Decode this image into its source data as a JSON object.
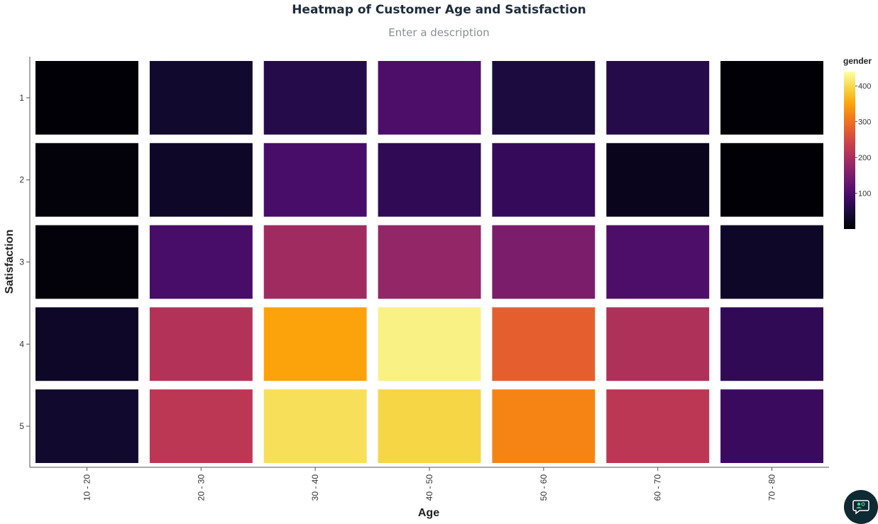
{
  "chart_data": {
    "type": "heatmap",
    "title": "Heatmap of Customer Age and Satisfaction",
    "subtitle": "Enter a description",
    "xlabel": "Age",
    "ylabel": "Satisfaction",
    "x_categories": [
      "10 - 20",
      "20 - 30",
      "30 - 40",
      "40 - 50",
      "50 - 60",
      "60 - 70",
      "70 - 80"
    ],
    "y_categories": [
      "1",
      "2",
      "3",
      "4",
      "5"
    ],
    "values": [
      [
        2,
        35,
        60,
        100,
        50,
        60,
        2
      ],
      [
        5,
        30,
        95,
        70,
        75,
        20,
        2
      ],
      [
        5,
        95,
        190,
        175,
        150,
        100,
        30
      ],
      [
        30,
        210,
        350,
        425,
        280,
        205,
        70
      ],
      [
        35,
        220,
        405,
        395,
        320,
        220,
        80
      ]
    ],
    "colorbar": {
      "title": "gender",
      "min": 0,
      "max": 440,
      "ticks": [
        100,
        200,
        300,
        400
      ],
      "colorscale": "inferno",
      "placement": "right"
    }
  },
  "ui": {
    "chat_icon": "chat-support-icon",
    "chat_button_color": "#0e2a33",
    "chat_icon_color": "#3ecf8e"
  }
}
